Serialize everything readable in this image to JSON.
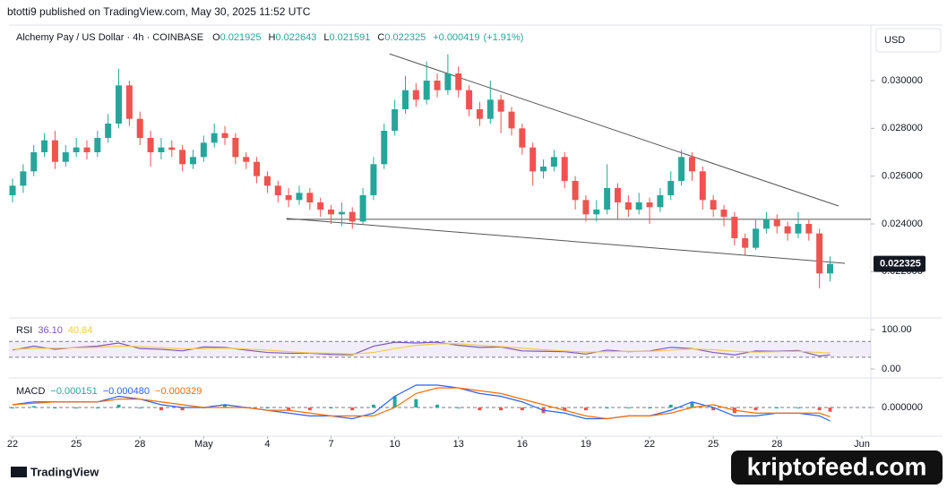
{
  "header": {
    "publisher": "btotti9 published on TradingView.com, May 30, 2025 11:52 UTC",
    "currency": "USD"
  },
  "footer": {
    "brand": "TradingView",
    "watermark": "kriptofeed.com"
  },
  "chart_data": [
    {
      "type": "candlestick",
      "title": "Alchemy Pay / US Dollar · 4h · COINBASE",
      "legend_keys": [
        "O",
        "H",
        "L",
        "C"
      ],
      "change": {
        "value": 0.000419,
        "label": "+0.000419"
      },
      "change_pct": {
        "value": 1.91,
        "label": "(+1.91%)"
      },
      "color_up": "#26a69a",
      "color_down": "#ef5350",
      "xlim": [
        -0.34,
        80.84
      ],
      "xticks": [
        {
          "value": 0,
          "label": "22"
        },
        {
          "value": 6,
          "label": "25"
        },
        {
          "value": 12,
          "label": "28"
        },
        {
          "value": 18,
          "label": "May"
        },
        {
          "value": 24,
          "label": "4"
        },
        {
          "value": 30,
          "label": "7"
        },
        {
          "value": 36,
          "label": "10"
        },
        {
          "value": 42,
          "label": "13"
        },
        {
          "value": 48,
          "label": "16"
        },
        {
          "value": 54,
          "label": "19"
        },
        {
          "value": 60,
          "label": "22"
        },
        {
          "value": 66,
          "label": "25"
        },
        {
          "value": 72,
          "label": "28"
        },
        {
          "value": 80,
          "label": "Jun"
        }
      ],
      "ylim": [
        0.020175,
        0.03225
      ],
      "yticks": [
        {
          "value": 0.022,
          "label": "0.022000"
        },
        {
          "value": 0.024,
          "label": "0.024000"
        },
        {
          "value": 0.026,
          "label": "0.026000"
        },
        {
          "value": 0.028,
          "label": "0.028000"
        },
        {
          "value": 0.03,
          "label": "0.030000"
        }
      ],
      "open": [
        0.0252,
        0.0256,
        0.0262,
        0.027,
        0.0275,
        0.0266,
        0.027,
        0.0272,
        0.027,
        0.0276,
        0.0282,
        0.0298,
        0.0284,
        0.0276,
        0.027,
        0.0272,
        0.0271,
        0.0265,
        0.0268,
        0.0274,
        0.0278,
        0.0276,
        0.0268,
        0.0266,
        0.026,
        0.0256,
        0.0252,
        0.025,
        0.0253,
        0.0249,
        0.0246,
        0.0244,
        0.0245,
        0.0241,
        0.0252,
        0.0265,
        0.0279,
        0.0288,
        0.0296,
        0.0292,
        0.03,
        0.0296,
        0.0303,
        0.0296,
        0.0288,
        0.0284,
        0.0292,
        0.0287,
        0.028,
        0.0272,
        0.0262,
        0.0264,
        0.0268,
        0.0258,
        0.025,
        0.0244,
        0.0246,
        0.0255,
        0.0249,
        0.0246,
        0.0249,
        0.0247,
        0.0252,
        0.0258,
        0.0268,
        0.0262,
        0.025,
        0.0246,
        0.0243,
        0.0234,
        0.023,
        0.0238,
        0.0242,
        0.0239,
        0.0236,
        0.024,
        0.0236,
        0.021925
      ],
      "high": [
        0.0259,
        0.0265,
        0.0273,
        0.0278,
        0.0279,
        0.0273,
        0.0276,
        0.0275,
        0.0279,
        0.0286,
        0.0305,
        0.03,
        0.0287,
        0.0279,
        0.0276,
        0.0275,
        0.0273,
        0.0271,
        0.0277,
        0.0282,
        0.0281,
        0.0278,
        0.027,
        0.0268,
        0.0262,
        0.0258,
        0.0255,
        0.0256,
        0.0255,
        0.0251,
        0.0248,
        0.0249,
        0.0247,
        0.0255,
        0.0268,
        0.0282,
        0.0292,
        0.0302,
        0.0299,
        0.0308,
        0.0303,
        0.0311,
        0.0306,
        0.0298,
        0.0291,
        0.03,
        0.0294,
        0.0289,
        0.0282,
        0.0274,
        0.0267,
        0.0271,
        0.027,
        0.026,
        0.0252,
        0.025,
        0.0265,
        0.0257,
        0.0252,
        0.0253,
        0.0251,
        0.0255,
        0.0262,
        0.0271,
        0.027,
        0.0264,
        0.0252,
        0.0248,
        0.0245,
        0.0236,
        0.0242,
        0.0245,
        0.0244,
        0.0241,
        0.0245,
        0.0242,
        0.0238,
        0.022643
      ],
      "low": [
        0.0249,
        0.0253,
        0.026,
        0.0268,
        0.0263,
        0.0264,
        0.0268,
        0.0267,
        0.0268,
        0.0274,
        0.028,
        0.0281,
        0.0273,
        0.0264,
        0.0267,
        0.0268,
        0.0262,
        0.0263,
        0.0266,
        0.0272,
        0.0273,
        0.0265,
        0.0263,
        0.0257,
        0.0253,
        0.0249,
        0.0247,
        0.0248,
        0.0246,
        0.0243,
        0.024,
        0.0239,
        0.0238,
        0.024,
        0.025,
        0.0263,
        0.0277,
        0.0286,
        0.0289,
        0.029,
        0.0293,
        0.0294,
        0.0293,
        0.0285,
        0.0281,
        0.0282,
        0.0278,
        0.0277,
        0.0269,
        0.0256,
        0.0259,
        0.0262,
        0.0255,
        0.0246,
        0.0241,
        0.0241,
        0.0244,
        0.0242,
        0.0243,
        0.0244,
        0.024,
        0.0245,
        0.025,
        0.0256,
        0.0258,
        0.0246,
        0.0243,
        0.0239,
        0.0231,
        0.0227,
        0.0229,
        0.0236,
        0.0236,
        0.0233,
        0.0234,
        0.0233,
        0.0213,
        0.021591
      ],
      "close": [
        0.0256,
        0.0262,
        0.027,
        0.0275,
        0.0266,
        0.027,
        0.0272,
        0.027,
        0.0276,
        0.0282,
        0.0298,
        0.0284,
        0.0276,
        0.027,
        0.0272,
        0.0271,
        0.0265,
        0.0268,
        0.0274,
        0.0278,
        0.0276,
        0.0268,
        0.0266,
        0.026,
        0.0256,
        0.0252,
        0.025,
        0.0253,
        0.0249,
        0.0246,
        0.0244,
        0.0245,
        0.0241,
        0.0252,
        0.0265,
        0.0279,
        0.0288,
        0.0296,
        0.0292,
        0.03,
        0.0296,
        0.0303,
        0.0296,
        0.0288,
        0.0284,
        0.0292,
        0.0287,
        0.028,
        0.0272,
        0.0262,
        0.0264,
        0.0268,
        0.0258,
        0.025,
        0.0244,
        0.0246,
        0.0255,
        0.0249,
        0.0246,
        0.0249,
        0.0247,
        0.0252,
        0.0258,
        0.0268,
        0.0262,
        0.025,
        0.0246,
        0.0243,
        0.0234,
        0.023,
        0.0238,
        0.0242,
        0.0239,
        0.0236,
        0.024,
        0.0236,
        0.021925,
        0.022325
      ],
      "lines": [
        {
          "x": [
            35.5,
            77.8
          ],
          "y": [
            0.03112,
            0.02475
          ]
        },
        {
          "x": [
            25.8,
            78.4
          ],
          "y": [
            0.02423,
            0.02235
          ]
        },
        {
          "x": [
            25.8,
            80.84
          ],
          "y": [
            0.02419,
            0.02419
          ]
        }
      ]
    },
    {
      "type": "line",
      "title": "RSI",
      "ylim": [
        -18,
        125
      ],
      "yticks": [
        {
          "value": 100,
          "label": "100.00"
        },
        {
          "value": 0,
          "label": "0.00"
        }
      ],
      "band": [
        30,
        70
      ],
      "series": [
        {
          "color": "#7e57c2",
          "legend_value": {
            "value": 36.1,
            "label": "36.10"
          },
          "x": [
            0,
            2,
            4,
            6,
            8,
            10,
            12,
            14,
            16,
            18,
            20,
            22,
            24,
            26,
            28,
            30,
            32,
            34,
            36,
            38,
            40,
            42,
            44,
            46,
            48,
            50,
            52,
            54,
            56,
            58,
            60,
            62,
            64,
            66,
            68,
            70,
            72,
            74,
            76,
            77
          ],
          "values": [
            48,
            58,
            50,
            55,
            58,
            66,
            52,
            50,
            46,
            56,
            55,
            48,
            42,
            40,
            40,
            37,
            36,
            58,
            68,
            66,
            68,
            60,
            55,
            56,
            46,
            45,
            44,
            38,
            48,
            44,
            46,
            55,
            52,
            42,
            36,
            46,
            45,
            47,
            33,
            36.1
          ]
        },
        {
          "color": "#f7c948",
          "legend_value": {
            "value": 40.84,
            "label": "40.84"
          },
          "x": [
            0,
            2,
            4,
            6,
            8,
            10,
            12,
            14,
            16,
            18,
            20,
            22,
            24,
            26,
            28,
            30,
            32,
            34,
            36,
            38,
            40,
            42,
            44,
            46,
            48,
            50,
            52,
            54,
            56,
            58,
            60,
            62,
            64,
            66,
            68,
            70,
            72,
            74,
            76,
            77
          ],
          "values": [
            50,
            52,
            53,
            54,
            55,
            58,
            57,
            54,
            51,
            52,
            53,
            51,
            48,
            44,
            41,
            40,
            38,
            42,
            52,
            60,
            64,
            64,
            60,
            57,
            53,
            49,
            46,
            43,
            44,
            45,
            45,
            48,
            51,
            49,
            45,
            43,
            44,
            45,
            42,
            40.84
          ]
        }
      ]
    },
    {
      "type": "combo",
      "title": "MACD",
      "ylim": [
        -0.00096,
        0.00096
      ],
      "yticks": [
        {
          "value": 0,
          "label": "0.000000"
        }
      ],
      "series": [
        {
          "type": "bar",
          "color": "#26a69a",
          "color_down": "#ef5350",
          "legend_value": {
            "value": -0.000151,
            "label": "−0.000151"
          },
          "x": [
            0,
            2,
            4,
            6,
            8,
            10,
            12,
            14,
            16,
            18,
            20,
            22,
            24,
            26,
            28,
            30,
            32,
            34,
            36,
            38,
            40,
            42,
            44,
            46,
            48,
            50,
            52,
            54,
            56,
            58,
            60,
            62,
            64,
            66,
            68,
            70,
            72,
            74,
            76,
            77
          ],
          "values": [
            0,
            5e-05,
            0,
            0,
            0,
            0.0001,
            0,
            -0.0001,
            -0.0001,
            0,
            0.0001,
            0,
            0,
            -0.0001,
            -0.0001,
            0,
            -0.0001,
            0.0001,
            0.0004,
            0.0003,
            0.0001,
            0,
            -0.0001,
            -0.0001,
            -0.0001,
            -0.0002,
            -0.0001,
            -0.0001,
            0,
            0,
            0,
            0.0001,
            0.0002,
            -0.0001,
            -0.0002,
            -0.0001,
            0,
            0,
            -0.0001,
            -0.000151
          ]
        },
        {
          "type": "line",
          "color": "#2962ff",
          "legend_value": {
            "value": -0.00048,
            "label": "−0.000480"
          },
          "x": [
            0,
            2,
            4,
            6,
            8,
            10,
            12,
            14,
            16,
            18,
            20,
            22,
            24,
            26,
            28,
            30,
            32,
            34,
            36,
            38,
            40,
            42,
            44,
            46,
            48,
            50,
            52,
            54,
            56,
            58,
            60,
            62,
            64,
            66,
            68,
            70,
            72,
            74,
            76,
            77
          ],
          "values": [
            0.0001,
            0.0002,
            0.0002,
            0.0002,
            0.0002,
            0.0004,
            0.0003,
            0.0001,
            0,
            0,
            0.0001,
            0,
            -0.0001,
            -0.0002,
            -0.0003,
            -0.0003,
            -0.0004,
            -0.0002,
            0.0004,
            0.0008,
            0.0008,
            0.0007,
            0.0005,
            0.0004,
            0.0002,
            -0.0001,
            -0.0002,
            -0.0004,
            -0.0004,
            -0.0003,
            -0.0003,
            -0.0001,
            0.0002,
            0,
            -0.0003,
            -0.0003,
            -0.0002,
            -0.0002,
            -0.0003,
            -0.00048
          ]
        },
        {
          "type": "line",
          "color": "#ff6d00",
          "legend_value": {
            "value": -0.000329,
            "label": "−0.000329"
          },
          "x": [
            0,
            2,
            4,
            6,
            8,
            10,
            12,
            14,
            16,
            18,
            20,
            22,
            24,
            26,
            28,
            30,
            32,
            34,
            36,
            38,
            40,
            42,
            44,
            46,
            48,
            50,
            52,
            54,
            56,
            58,
            60,
            62,
            64,
            66,
            68,
            70,
            72,
            74,
            76,
            77
          ],
          "values": [
            0.0001,
            0.00015,
            0.0002,
            0.0002,
            0.0002,
            0.0003,
            0.0003,
            0.0002,
            0.0001,
            0,
            0,
            0,
            -0.0001,
            -0.0001,
            -0.0002,
            -0.0003,
            -0.0003,
            -0.0003,
            0,
            0.0005,
            0.0007,
            0.0007,
            0.0006,
            0.0005,
            0.0003,
            0.0001,
            -0.0001,
            -0.0003,
            -0.0004,
            -0.0003,
            -0.0003,
            -0.0002,
            0,
            0.0001,
            -0.0001,
            -0.0002,
            -0.0002,
            -0.0002,
            -0.0002,
            -0.000329
          ]
        }
      ]
    }
  ]
}
